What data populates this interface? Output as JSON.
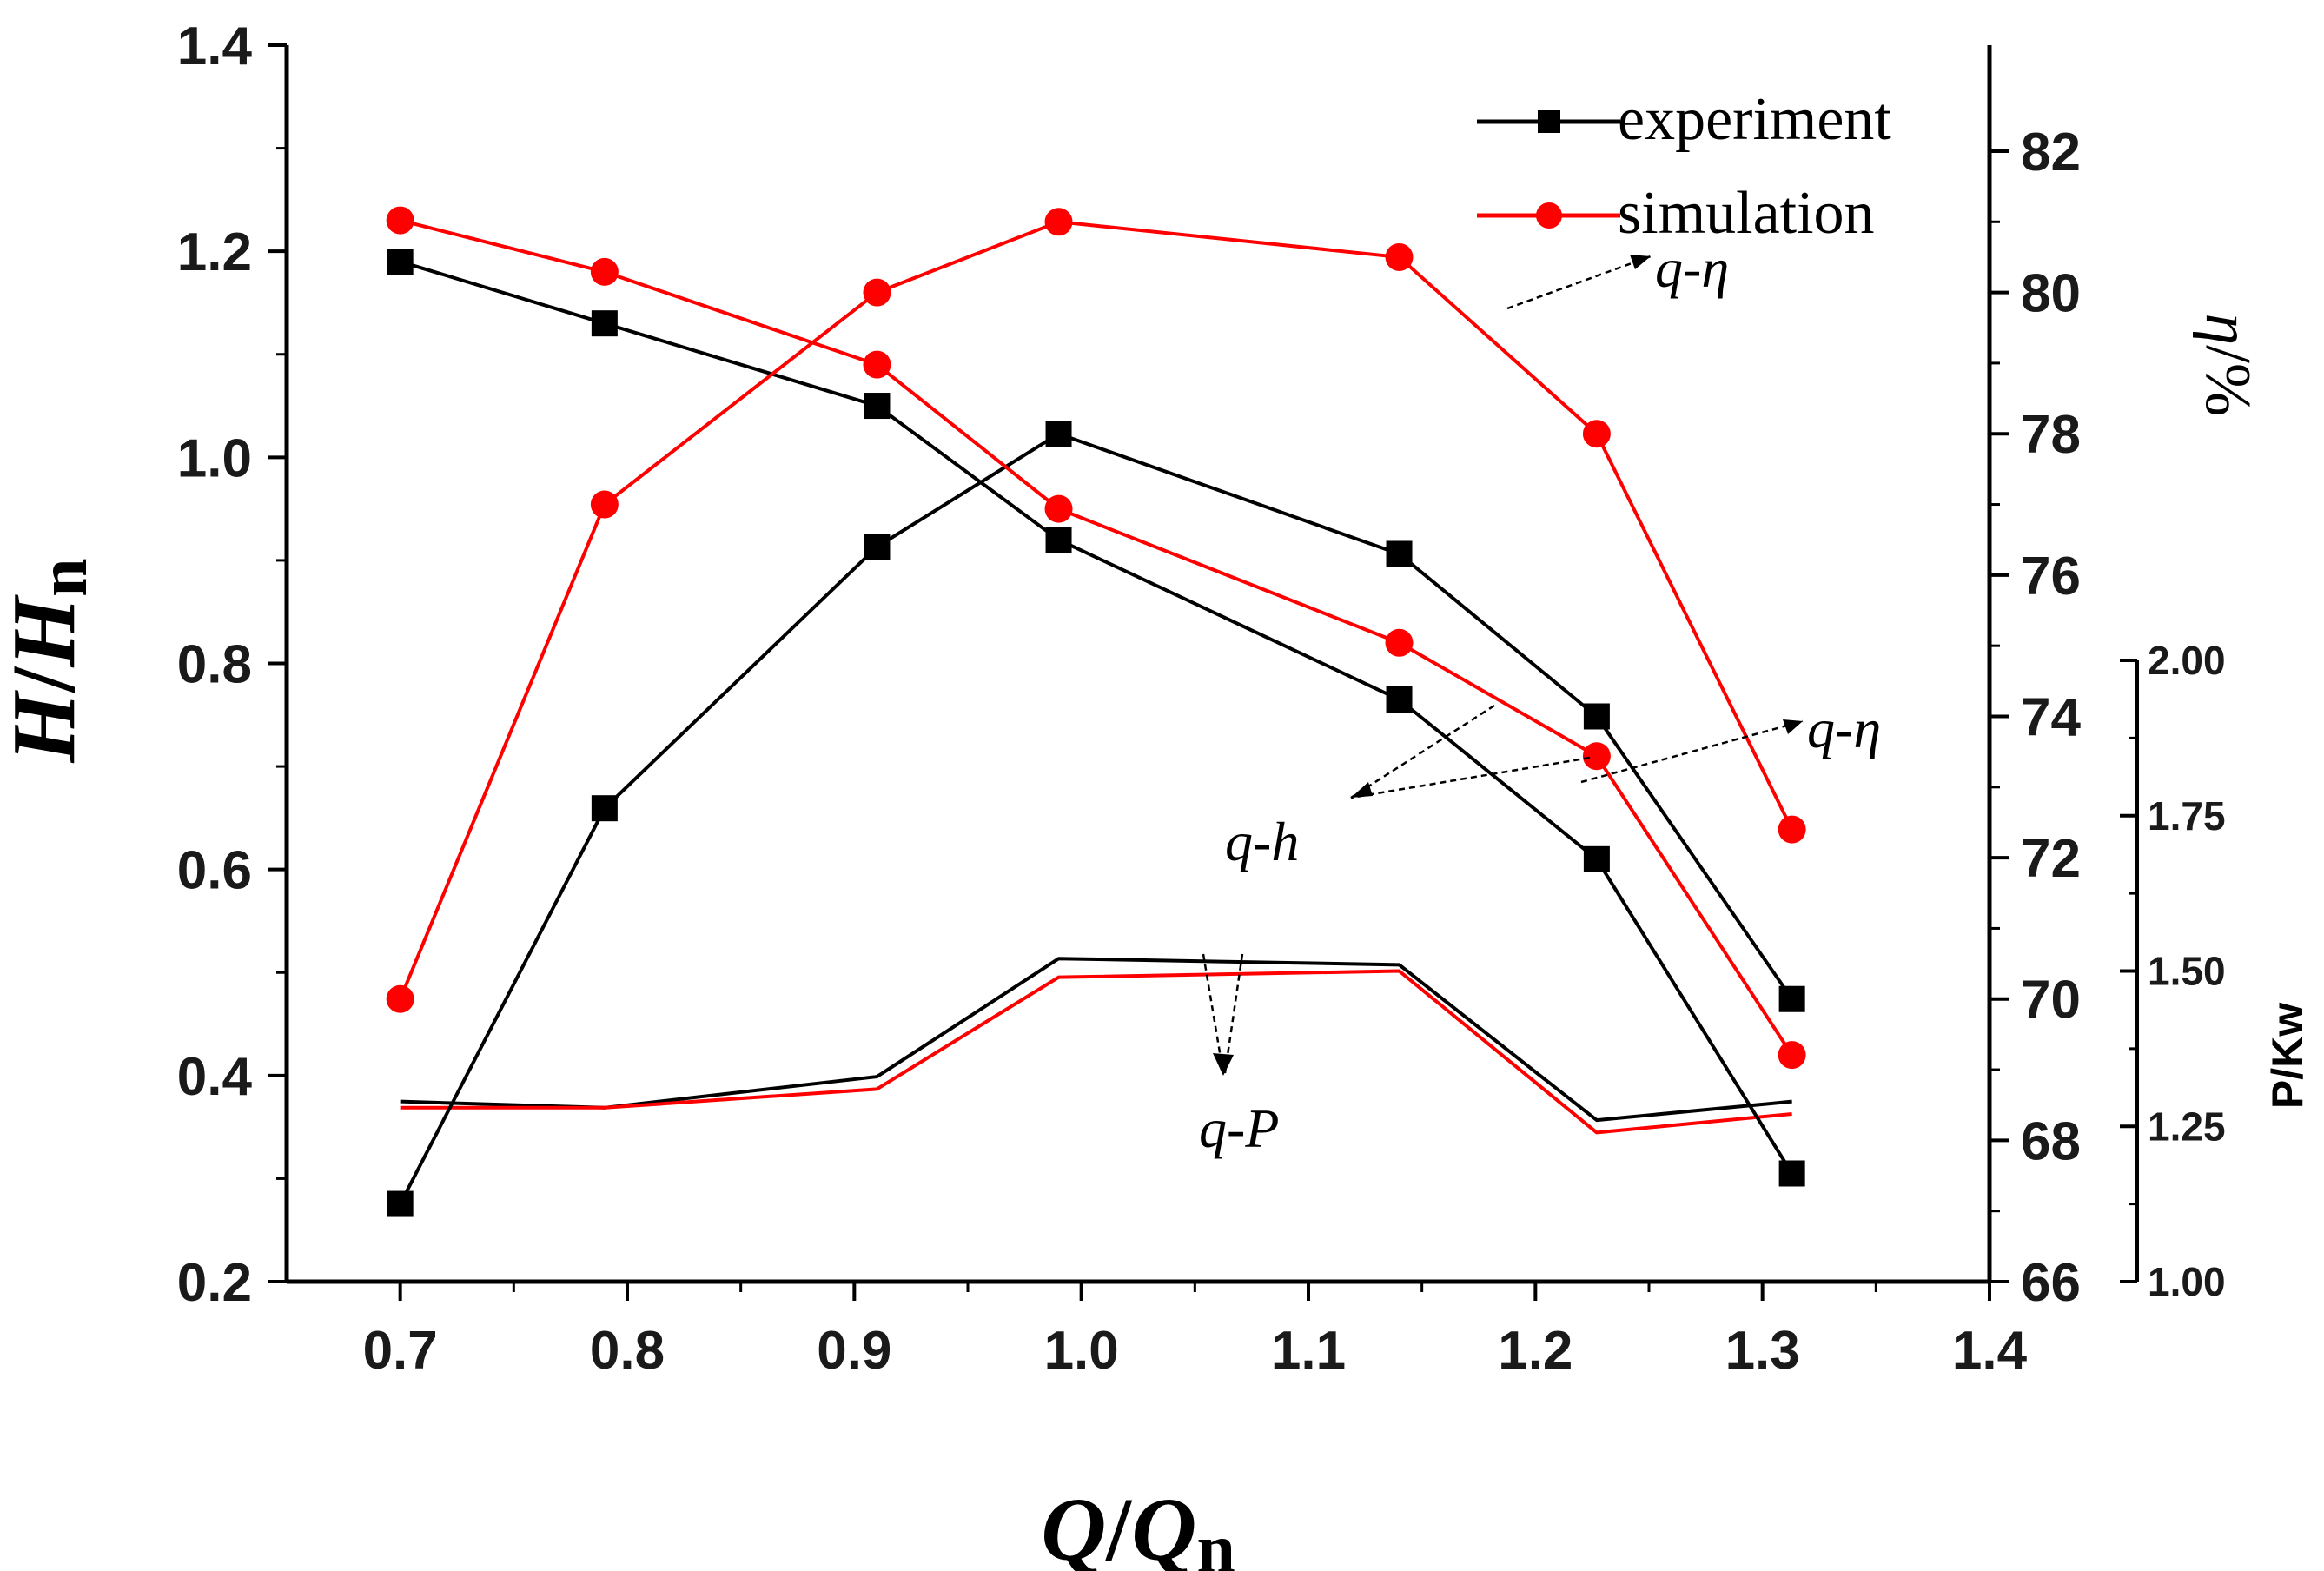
{
  "chart_data": {
    "type": "line",
    "title": "",
    "xlabel": "Q/Qn",
    "ylabel": "H/Hn",
    "y2label": "η/%",
    "y3label": "P/Kw",
    "xlim": [
      0.65,
      1.4
    ],
    "ylim": [
      0.2,
      1.4
    ],
    "y2lim": [
      66,
      83.5
    ],
    "y3lim": [
      1.0,
      2.0
    ],
    "x_ticks": [
      "0.7",
      "0.8",
      "0.9",
      "1.0",
      "1.1",
      "1.2",
      "1.3",
      "1.4"
    ],
    "y_ticks": [
      "0.2",
      "0.4",
      "0.6",
      "0.8",
      "1.0",
      "1.2",
      "1.4"
    ],
    "y2_ticks": [
      "66",
      "68",
      "70",
      "72",
      "74",
      "76",
      "78",
      "80",
      "82"
    ],
    "y3_ticks": [
      "1.00",
      "1.25",
      "1.50",
      "1.75",
      "2.00"
    ],
    "x": [
      0.7,
      0.79,
      0.91,
      0.99,
      1.14,
      1.227,
      1.313
    ],
    "legend": [
      {
        "name": "experiment",
        "color": "#000000",
        "marker": "square"
      },
      {
        "name": "simulation",
        "color": "#ff0000",
        "marker": "circle"
      }
    ],
    "series": [
      {
        "name": "experiment",
        "curve": "q-h",
        "axis": "left",
        "color": "#000000",
        "marker": "square",
        "values": [
          1.19,
          1.13,
          1.05,
          0.92,
          0.765,
          0.61,
          0.305
        ]
      },
      {
        "name": "simulation",
        "curve": "q-h",
        "axis": "left",
        "color": "#ff0000",
        "marker": "circle",
        "values": [
          1.23,
          1.18,
          1.09,
          0.95,
          0.82,
          0.71,
          0.42
        ]
      },
      {
        "name": "experiment",
        "curve": "q-η",
        "axis": "right",
        "color": "#000000",
        "marker": "square",
        "values": [
          67.1,
          72.7,
          76.4,
          78.0,
          76.3,
          74.0,
          70.0
        ]
      },
      {
        "name": "simulation",
        "curve": "q-η",
        "axis": "right",
        "color": "#ff0000",
        "marker": "circle",
        "values": [
          70.0,
          77.0,
          80.0,
          81.0,
          80.5,
          78.0,
          72.4
        ]
      },
      {
        "name": "experiment",
        "curve": "q-P",
        "axis": "right2",
        "color": "#000000",
        "marker": "none",
        "values": [
          1.29,
          1.28,
          1.33,
          1.52,
          1.51,
          1.26,
          1.29
        ]
      },
      {
        "name": "simulation",
        "curve": "q-P",
        "axis": "right2",
        "color": "#ff0000",
        "marker": "none",
        "values": [
          1.28,
          1.28,
          1.31,
          1.49,
          1.5,
          1.24,
          1.27
        ]
      }
    ],
    "annotations": [
      "q-η",
      "q-η",
      "q-h",
      "q-P"
    ],
    "grid": false,
    "legend_position": "top-right"
  }
}
